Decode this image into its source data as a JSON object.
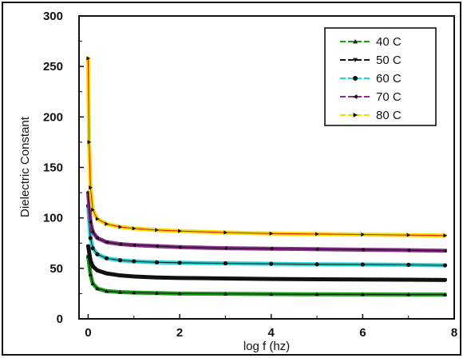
{
  "chart_data": {
    "type": "line",
    "title": "",
    "xlabel": "log f (hz)",
    "ylabel": "Dielectric Constant",
    "xlim": [
      -0.2,
      8
    ],
    "ylim": [
      0,
      300
    ],
    "x_ticks": [
      0,
      2,
      4,
      6,
      8
    ],
    "y_ticks": [
      0,
      50,
      100,
      150,
      200,
      250,
      300
    ],
    "grid": false,
    "legend_position": "top-right",
    "series": [
      {
        "name": "40 C",
        "color": "#1a9e1a",
        "marker": "triangle-up",
        "x": [
          0,
          0.05,
          0.1,
          0.2,
          0.4,
          0.7,
          1,
          1.5,
          2,
          3,
          4,
          5,
          6,
          7,
          7.8
        ],
        "y": [
          62,
          44,
          35,
          30,
          27.5,
          26.5,
          26,
          25.5,
          25,
          24.8,
          24.5,
          24.3,
          24.2,
          24,
          24
        ]
      },
      {
        "name": "50 C",
        "color": "#111111",
        "marker": "triangle-down",
        "x": [
          0,
          0.05,
          0.1,
          0.2,
          0.4,
          0.7,
          1,
          1.5,
          2,
          3,
          4,
          5,
          6,
          7,
          7.8
        ],
        "y": [
          72,
          58,
          52,
          48,
          45,
          43,
          42,
          41,
          40.5,
          40,
          39.5,
          39.2,
          39,
          38.8,
          38.5
        ]
      },
      {
        "name": "60 C",
        "color": "#22d4d4",
        "marker": "circle",
        "x": [
          0,
          0.05,
          0.1,
          0.2,
          0.4,
          0.7,
          1,
          1.5,
          2,
          3,
          4,
          5,
          6,
          7,
          7.8
        ],
        "y": [
          112,
          80,
          70,
          64,
          60,
          58,
          57,
          56,
          55.5,
          55,
          54.5,
          54,
          53.8,
          53.5,
          53
        ]
      },
      {
        "name": "70 C",
        "color": "#8b2c8b",
        "marker": "triangle-left",
        "x": [
          0,
          0.05,
          0.1,
          0.2,
          0.4,
          0.7,
          1,
          1.5,
          2,
          3,
          4,
          5,
          6,
          7,
          7.8
        ],
        "y": [
          125,
          96,
          86,
          80,
          76,
          74,
          73,
          72,
          71,
          70,
          69.5,
          69,
          68.5,
          68,
          67.5
        ]
      },
      {
        "name": "80 C",
        "color": "#f0e000",
        "marker": "triangle-right",
        "line_color": "#e01010",
        "x": [
          0,
          0.02,
          0.05,
          0.1,
          0.2,
          0.4,
          0.7,
          1,
          1.5,
          2,
          3,
          4,
          5,
          6,
          7,
          7.8
        ],
        "y": [
          258,
          175,
          130,
          108,
          99,
          94,
          91,
          89.5,
          88,
          87,
          85.5,
          84.5,
          84,
          83.5,
          83,
          82.5
        ]
      }
    ]
  }
}
